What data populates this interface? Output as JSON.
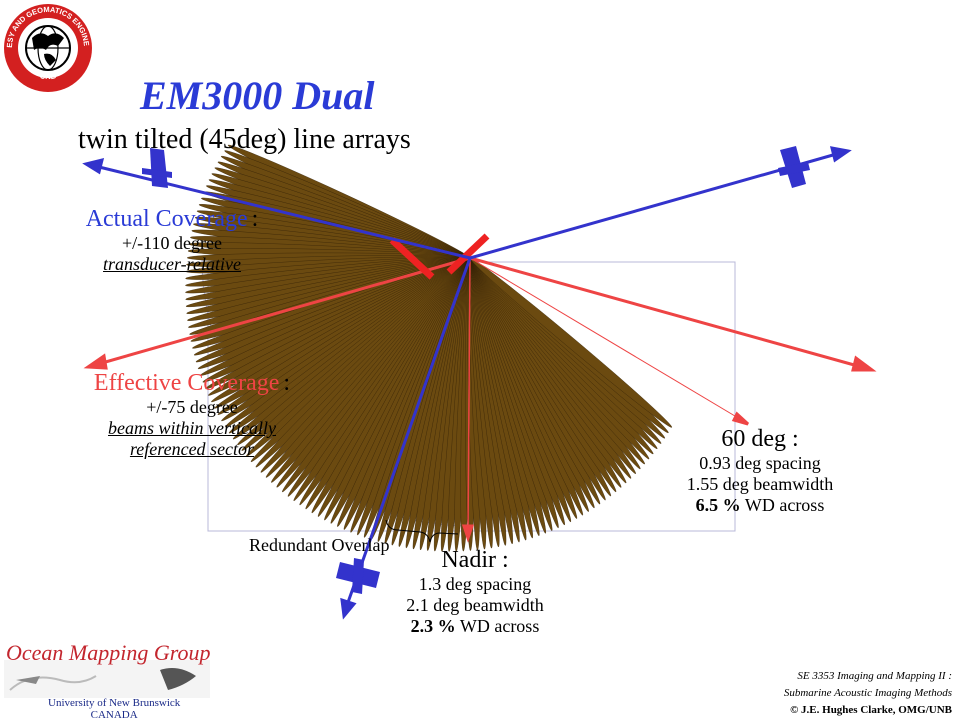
{
  "title": "EM3000 Dual",
  "subtitle": "twin tilted (45deg) line arrays",
  "actual_coverage": {
    "heading": "Actual Coverage",
    "colon": ":",
    "line1": "+/-110 degree",
    "line2": "transducer-relative"
  },
  "effective_coverage": {
    "heading": "Effective Coverage",
    "colon": ":",
    "line1": "+/-75 degree",
    "line2": "beams within vertically",
    "line3": "referenced sector"
  },
  "sixty_deg": {
    "heading": "60 deg :",
    "line1": "0.93 deg spacing",
    "line2": "1.55 deg beamwidth",
    "line3_bold": "6.5 %",
    "line3_rest": " WD across"
  },
  "nadir": {
    "heading": "Nadir :",
    "line1": "1.3 deg spacing",
    "line2": "2.1 deg beamwidth",
    "line3_bold": "2.3 %",
    "line3_rest": " WD across"
  },
  "redundant_overlap": "Redundant Overlap",
  "logo": {
    "top_text": "GEODESY AND GEOMATICS ENGINEERING",
    "bottom_text": "UNB",
    "icon": "globe-icon"
  },
  "footer": {
    "group_name": "Ocean Mapping Group",
    "university_line1": "University of New Brunswick",
    "university_line2": "CANADA",
    "course_line1": "SE 3353 Imaging and Mapping II :",
    "course_line2": "Submarine Acoustic Imaging Methods",
    "copyright": "© J.E. Hughes Clarke, OMG/UNB"
  },
  "colors": {
    "title_blue": "#2a3bd6",
    "actual_blue": "#3333cc",
    "effective_red": "#ee4444",
    "beam_brown": "#6b4a10",
    "grid_lavender": "#b8b8ee",
    "omg_red": "#c3262e"
  }
}
